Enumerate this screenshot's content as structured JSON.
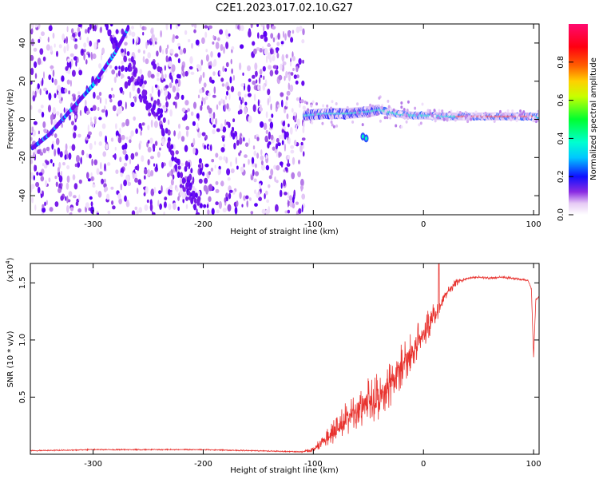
{
  "title": "C2E1.2023.017.02.10.G27",
  "chart_data": [
    {
      "type": "heatmap",
      "xlabel": "Height of straight line (km)",
      "ylabel": "Frequency (Hz)",
      "xlim": [
        -357,
        105
      ],
      "ylim": [
        -50,
        50
      ],
      "xticks": [
        -300,
        -200,
        -100,
        0,
        100
      ],
      "yticks": [
        -40,
        -20,
        0,
        20,
        40
      ],
      "colorbar": {
        "label": "Normalized spectral amplitude",
        "range": [
          0,
          1
        ],
        "ticks": [
          0.0,
          0.2,
          0.4,
          0.6,
          0.8
        ],
        "tick_labels": [
          "0.0",
          "0.2",
          "0.4",
          "0.6",
          "0.8"
        ],
        "colormap": "rainbow (white, purple, blue, cyan, green, yellow, orange, red, magenta)"
      },
      "features": {
        "noise_region_x": [
          -357,
          -108
        ],
        "diagonal_line": [
          [
            -355,
            -15
          ],
          [
            -340,
            -8
          ],
          [
            -320,
            5
          ],
          [
            -300,
            18
          ],
          [
            -280,
            35
          ],
          [
            -268,
            48
          ]
        ],
        "mirror_line": [
          [
            -285,
            45
          ],
          [
            -260,
            20
          ],
          [
            -240,
            0
          ],
          [
            -225,
            -20
          ],
          [
            -210,
            -40
          ],
          [
            -200,
            -50
          ]
        ],
        "carrier": [
          [
            -108,
            2
          ],
          [
            -90,
            3
          ],
          [
            -70,
            3
          ],
          [
            -50,
            4
          ],
          [
            -40,
            5
          ],
          [
            -25,
            3
          ],
          [
            -10,
            2
          ],
          [
            0,
            2
          ],
          [
            20,
            1.5
          ],
          [
            40,
            1.5
          ],
          [
            60,
            1.5
          ],
          [
            80,
            1.5
          ],
          [
            100,
            1.5
          ],
          [
            105,
            1
          ]
        ],
        "carrier_strong_x": [
          30,
          100
        ],
        "blob": [
          [
            -55,
            -9
          ],
          [
            -52,
            -10
          ]
        ]
      }
    },
    {
      "type": "line",
      "xlabel": "Height of straight line (km)",
      "ylabel": "SNR (10 * v/v)",
      "y_multiplier": "(x10",
      "y_multiplier_exp": "4",
      "y_multiplier_close": ")",
      "xlim": [
        -357,
        105
      ],
      "ylim": [
        0,
        1.67
      ],
      "xticks": [
        -300,
        -200,
        -100,
        0,
        100
      ],
      "yticks": [
        0.5,
        1.0,
        1.5
      ],
      "ytick_labels": [
        "0.5",
        "1.0",
        "1.5"
      ],
      "series": [
        {
          "color": "#e8322e",
          "x": [
            -357,
            -300,
            -250,
            -200,
            -150,
            -110,
            -100,
            -90,
            -80,
            -70,
            -60,
            -50,
            -40,
            -30,
            -20,
            -10,
            0,
            10,
            15,
            20,
            30,
            40,
            50,
            60,
            70,
            80,
            90,
            95,
            98,
            100,
            102,
            105
          ],
          "y": [
            0.03,
            0.04,
            0.04,
            0.04,
            0.03,
            0.02,
            0.04,
            0.12,
            0.2,
            0.3,
            0.38,
            0.45,
            0.5,
            0.6,
            0.75,
            0.9,
            1.05,
            1.2,
            1.3,
            1.4,
            1.5,
            1.54,
            1.55,
            1.54,
            1.55,
            1.54,
            1.53,
            1.52,
            1.45,
            0.85,
            1.35,
            1.38
          ],
          "noise_amplitude": [
            0.01,
            0.01,
            0.01,
            0.01,
            0.01,
            0.01,
            0.05,
            0.12,
            0.22,
            0.3,
            0.35,
            0.4,
            0.45,
            0.4,
            0.4,
            0.35,
            0.3,
            0.25,
            0.2,
            0.1,
            0.06,
            0.02,
            0.02,
            0.02,
            0.02,
            0.02,
            0.02,
            0.02,
            0.02,
            0.0,
            0.02,
            0.02
          ],
          "peak": [
            14,
            1.67
          ]
        }
      ]
    }
  ]
}
